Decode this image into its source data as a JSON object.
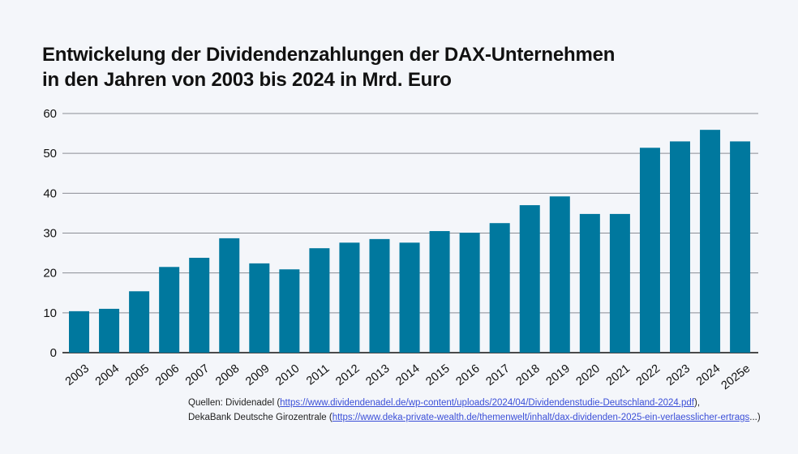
{
  "chart_data": {
    "type": "bar",
    "title_lines": [
      "Entwickelung der Dividendenzahlungen der DAX-Unternehmen",
      "in den Jahren von 2003 bis 2024 in Mrd. Euro"
    ],
    "categories": [
      "2003",
      "2004",
      "2005",
      "2006",
      "2007",
      "2008",
      "2009",
      "2010",
      "2011",
      "2012",
      "2013",
      "2014",
      "2015",
      "2016",
      "2017",
      "2018",
      "2019",
      "2020",
      "2021",
      "2022",
      "2023",
      "2024",
      "2025e"
    ],
    "values": [
      10.4,
      11.0,
      15.4,
      21.5,
      23.8,
      28.7,
      22.4,
      20.9,
      26.2,
      27.6,
      28.5,
      27.6,
      30.5,
      30.1,
      32.5,
      37.0,
      39.2,
      34.8,
      34.8,
      51.4,
      53.0,
      55.9,
      53.0
    ],
    "yticks": [
      "0",
      "10",
      "20",
      "30",
      "40",
      "50",
      "60"
    ],
    "ylim": [
      0,
      60
    ],
    "grid": true,
    "bar_color": "#00789e",
    "xlabel": "",
    "ylabel": ""
  },
  "sources": {
    "prefix": "Quellen: Dividenadel (",
    "link1": "https://www.dividendenadel.de/wp-content/uploads/2024/04/Dividendenstudie-Deutschland-2024.pdf",
    "mid": "),",
    "line2_prefix": "DekaBank Deutsche Girozentrale (",
    "link2": "https://www.deka-private-wealth.de/themenwelt/inhalt/dax-dividenden-2025-ein-verlaesslicher-ertrags",
    "suffix": "...)"
  }
}
